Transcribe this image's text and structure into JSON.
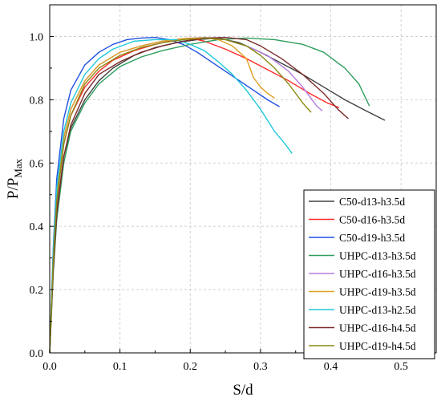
{
  "chart_data": {
    "type": "line",
    "title": "",
    "xlabel": "S/d",
    "ylabel": "P/P",
    "ylabel_subscript": "Max",
    "xlim": [
      0,
      0.55
    ],
    "ylim": [
      0,
      1.1
    ],
    "xticks": [
      0.0,
      0.1,
      0.2,
      0.3,
      0.4,
      0.5
    ],
    "xtick_labels": [
      "0.0",
      "0.1",
      "0.2",
      "0.3",
      "0.4",
      "0.5"
    ],
    "yticks": [
      0.0,
      0.2,
      0.4,
      0.6,
      0.8,
      1.0
    ],
    "ytick_labels": [
      "0.0",
      "0.2",
      "0.4",
      "0.6",
      "0.8",
      "1.0"
    ],
    "grid": true,
    "legend_position": "bottom-right",
    "series": [
      {
        "name": "C50-d13-h3.5d",
        "color": "#404040",
        "x": [
          0,
          0.005,
          0.01,
          0.02,
          0.03,
          0.05,
          0.07,
          0.09,
          0.12,
          0.15,
          0.18,
          0.21,
          0.24,
          0.27,
          0.3,
          0.33,
          0.36,
          0.39,
          0.42,
          0.45,
          0.477
        ],
        "y": [
          0,
          0.28,
          0.45,
          0.62,
          0.71,
          0.8,
          0.86,
          0.9,
          0.94,
          0.965,
          0.98,
          0.99,
          0.995,
          0.98,
          0.95,
          0.915,
          0.88,
          0.84,
          0.8,
          0.765,
          0.735
        ]
      },
      {
        "name": "C50-d16-h3.5d",
        "color": "#ff2a2a",
        "x": [
          0,
          0.005,
          0.01,
          0.02,
          0.03,
          0.05,
          0.07,
          0.09,
          0.12,
          0.15,
          0.18,
          0.2,
          0.22,
          0.25,
          0.28,
          0.31,
          0.34,
          0.37,
          0.395,
          0.412
        ],
        "y": [
          0,
          0.3,
          0.48,
          0.66,
          0.75,
          0.84,
          0.89,
          0.925,
          0.955,
          0.975,
          0.99,
          0.995,
          0.985,
          0.96,
          0.93,
          0.895,
          0.86,
          0.82,
          0.79,
          0.775
        ]
      },
      {
        "name": "C50-d19-h3.5d",
        "color": "#1f4fe0",
        "x": [
          0,
          0.005,
          0.01,
          0.02,
          0.03,
          0.05,
          0.07,
          0.09,
          0.11,
          0.13,
          0.15,
          0.17,
          0.19,
          0.21,
          0.23,
          0.25,
          0.27,
          0.29,
          0.31,
          0.327
        ],
        "y": [
          0,
          0.33,
          0.55,
          0.74,
          0.83,
          0.91,
          0.95,
          0.975,
          0.99,
          0.995,
          0.997,
          0.99,
          0.975,
          0.95,
          0.92,
          0.89,
          0.86,
          0.83,
          0.8,
          0.778
        ]
      },
      {
        "name": "UHPC-d13-h3.5d",
        "color": "#2e9e5e",
        "x": [
          0,
          0.005,
          0.01,
          0.02,
          0.03,
          0.05,
          0.07,
          0.1,
          0.13,
          0.16,
          0.2,
          0.24,
          0.28,
          0.32,
          0.36,
          0.39,
          0.42,
          0.44,
          0.455
        ],
        "y": [
          0,
          0.25,
          0.42,
          0.6,
          0.7,
          0.79,
          0.85,
          0.905,
          0.935,
          0.955,
          0.975,
          0.99,
          0.995,
          0.99,
          0.975,
          0.95,
          0.9,
          0.85,
          0.78
        ]
      },
      {
        "name": "UHPC-d16-h3.5d",
        "color": "#b67be0",
        "x": [
          0,
          0.005,
          0.01,
          0.02,
          0.03,
          0.05,
          0.07,
          0.1,
          0.13,
          0.16,
          0.19,
          0.22,
          0.25,
          0.28,
          0.31,
          0.34,
          0.36,
          0.38,
          0.388
        ],
        "y": [
          0,
          0.3,
          0.5,
          0.68,
          0.77,
          0.86,
          0.91,
          0.95,
          0.97,
          0.985,
          0.993,
          0.997,
          0.99,
          0.97,
          0.94,
          0.89,
          0.84,
          0.78,
          0.765
        ]
      },
      {
        "name": "UHPC-d19-h3.5d",
        "color": "#e0a020",
        "x": [
          0,
          0.005,
          0.01,
          0.02,
          0.03,
          0.05,
          0.07,
          0.1,
          0.13,
          0.16,
          0.19,
          0.22,
          0.24,
          0.26,
          0.28,
          0.29,
          0.3,
          0.31,
          0.32
        ],
        "y": [
          0,
          0.3,
          0.5,
          0.68,
          0.77,
          0.86,
          0.91,
          0.95,
          0.97,
          0.985,
          0.993,
          0.996,
          0.99,
          0.97,
          0.93,
          0.87,
          0.84,
          0.82,
          0.805
        ]
      },
      {
        "name": "UHPC-d13-h2.5d",
        "color": "#20c8d8",
        "x": [
          0,
          0.005,
          0.01,
          0.02,
          0.03,
          0.05,
          0.07,
          0.09,
          0.12,
          0.15,
          0.18,
          0.2,
          0.22,
          0.24,
          0.26,
          0.28,
          0.3,
          0.32,
          0.335,
          0.345
        ],
        "y": [
          0,
          0.32,
          0.52,
          0.7,
          0.79,
          0.88,
          0.93,
          0.96,
          0.985,
          0.99,
          0.99,
          0.975,
          0.955,
          0.92,
          0.88,
          0.83,
          0.77,
          0.7,
          0.66,
          0.63
        ]
      },
      {
        "name": "UHPC-d16-h4.5d",
        "color": "#7a2a2a",
        "x": [
          0,
          0.005,
          0.01,
          0.02,
          0.03,
          0.05,
          0.07,
          0.1,
          0.13,
          0.16,
          0.19,
          0.22,
          0.25,
          0.28,
          0.3,
          0.33,
          0.36,
          0.39,
          0.41,
          0.425
        ],
        "y": [
          0,
          0.26,
          0.44,
          0.62,
          0.72,
          0.82,
          0.88,
          0.92,
          0.95,
          0.97,
          0.985,
          0.995,
          0.997,
          0.99,
          0.97,
          0.93,
          0.88,
          0.82,
          0.77,
          0.74
        ]
      },
      {
        "name": "UHPC-d19-h4.5d",
        "color": "#8a8a10",
        "x": [
          0,
          0.005,
          0.01,
          0.02,
          0.03,
          0.05,
          0.07,
          0.1,
          0.13,
          0.16,
          0.19,
          0.22,
          0.25,
          0.28,
          0.3,
          0.32,
          0.34,
          0.36,
          0.372
        ],
        "y": [
          0,
          0.29,
          0.48,
          0.66,
          0.75,
          0.85,
          0.9,
          0.94,
          0.965,
          0.98,
          0.99,
          0.995,
          0.99,
          0.97,
          0.94,
          0.9,
          0.85,
          0.79,
          0.76
        ]
      }
    ]
  }
}
